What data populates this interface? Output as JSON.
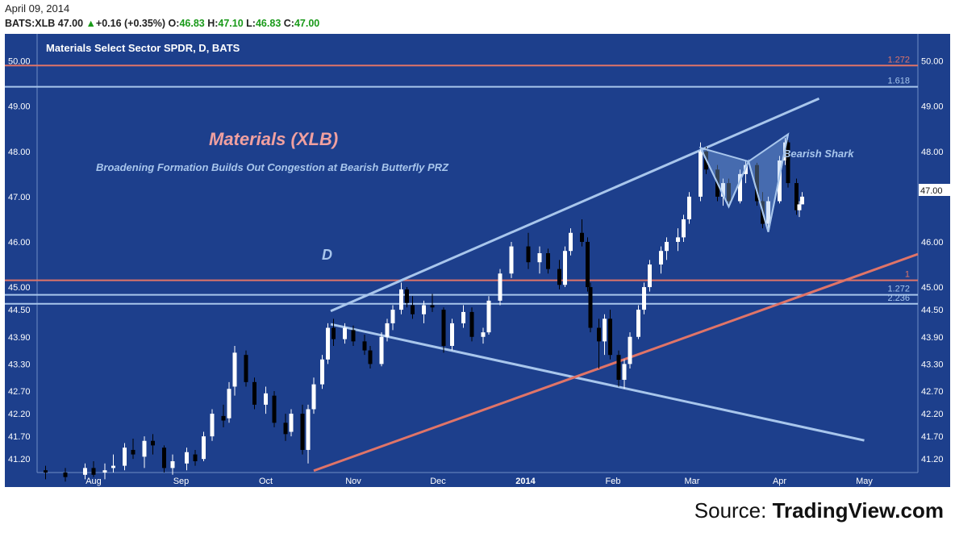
{
  "header": {
    "date": "April 09, 2014",
    "symbol": "BATS:XLB",
    "last": "47.00",
    "change": "+0.16 (+0.35%)",
    "o_label": "O:",
    "o_value": "46.83",
    "h_label": "H:",
    "h_value": "47.10",
    "l_label": "L:",
    "l_value": "46.83",
    "c_label": "C:",
    "c_value": "47.00"
  },
  "chart_title": "Materials Select Sector SPDR, D, BATS",
  "annotations": {
    "main_title": "Materials (XLB)",
    "subtitle": "Broadening Formation Builds Out Congestion at Bearish Butterfly PRZ",
    "d_label": "D",
    "shark_label": "Bearish Shark"
  },
  "source": {
    "prefix": "Source: ",
    "name": "TradingView.com"
  },
  "colors": {
    "background": "#1d3f8c",
    "up": "#ffffff",
    "down": "#000000",
    "blue_line": "#a8c6ec",
    "red_line": "#e07468",
    "title": "#f0a0a0"
  },
  "chart_data": {
    "type": "candlestick",
    "ylim": [
      40.9,
      50.6
    ],
    "y_ticks": [
      50.0,
      49.0,
      48.0,
      47.0,
      46.0,
      45.0,
      44.5,
      43.9,
      43.3,
      42.7,
      42.2,
      41.7,
      41.2
    ],
    "y_tick_labels": [
      "50.00",
      "49.00",
      "48.00",
      "47.00",
      "46.00",
      "45.00",
      "44.50",
      "43.90",
      "43.30",
      "42.70",
      "42.20",
      "41.70",
      "41.20"
    ],
    "last_price_label": "47.00",
    "x_labels": [
      "Aug",
      "Sep",
      "Oct",
      "Nov",
      "Dec",
      "2014",
      "Feb",
      "Mar",
      "Apr",
      "May"
    ],
    "x_label_dates": [
      "2013-08-01",
      "2013-09-01",
      "2013-10-01",
      "2013-11-01",
      "2013-12-01",
      "2014-01-01",
      "2014-02-01",
      "2014-03-01",
      "2014-04-01",
      "2014-05-01"
    ],
    "date_range": [
      "2013-07-12",
      "2014-05-20"
    ],
    "horizontal_levels": [
      {
        "value": 49.9,
        "label": "1.272",
        "color": "red"
      },
      {
        "value": 49.43,
        "label": "1.618",
        "color": "blue"
      },
      {
        "value": 45.15,
        "label": "1",
        "color": "red"
      },
      {
        "value": 44.83,
        "label": "1.272",
        "color": "blue"
      },
      {
        "value": 44.63,
        "label": "2.236",
        "color": "blue"
      }
    ],
    "trend_lines": [
      {
        "color": "blue",
        "from": [
          "2013-10-24",
          44.47
        ],
        "to": [
          "2014-04-15",
          49.17
        ]
      },
      {
        "color": "blue",
        "from": [
          "2013-10-24",
          44.18
        ],
        "to": [
          "2014-05-01",
          41.61
        ]
      },
      {
        "color": "red",
        "from": [
          "2013-10-18",
          40.94
        ],
        "to": [
          "2014-05-20",
          45.73
        ]
      }
    ],
    "shark_pattern": [
      {
        "date": "2014-03-04",
        "value": 48.08
      },
      {
        "date": "2014-03-14",
        "value": 46.78
      },
      {
        "date": "2014-03-21",
        "value": 47.78
      },
      {
        "date": "2014-03-28",
        "value": 46.22
      },
      {
        "date": "2014-04-04",
        "value": 48.38
      }
    ],
    "candles": [
      {
        "date": "2013-07-15",
        "o": 40.95,
        "h": 41.05,
        "l": 40.75,
        "c": 40.9
      },
      {
        "date": "2013-07-22",
        "o": 40.9,
        "h": 41.0,
        "l": 40.7,
        "c": 40.8
      },
      {
        "date": "2013-07-29",
        "o": 40.85,
        "h": 41.1,
        "l": 40.75,
        "c": 41.0
      },
      {
        "date": "2013-08-01",
        "o": 41.0,
        "h": 41.15,
        "l": 40.8,
        "c": 40.85
      },
      {
        "date": "2013-08-05",
        "o": 40.9,
        "h": 41.1,
        "l": 40.75,
        "c": 40.95
      },
      {
        "date": "2013-08-08",
        "o": 41.0,
        "h": 41.3,
        "l": 40.9,
        "c": 41.05
      },
      {
        "date": "2013-08-12",
        "o": 41.05,
        "h": 41.55,
        "l": 40.95,
        "c": 41.45
      },
      {
        "date": "2013-08-15",
        "o": 41.4,
        "h": 41.65,
        "l": 41.2,
        "c": 41.3
      },
      {
        "date": "2013-08-19",
        "o": 41.25,
        "h": 41.7,
        "l": 41.0,
        "c": 41.6
      },
      {
        "date": "2013-08-22",
        "o": 41.6,
        "h": 41.75,
        "l": 41.3,
        "c": 41.5
      },
      {
        "date": "2013-08-26",
        "o": 41.45,
        "h": 41.5,
        "l": 40.9,
        "c": 41.0
      },
      {
        "date": "2013-08-29",
        "o": 41.0,
        "h": 41.3,
        "l": 40.85,
        "c": 41.15
      },
      {
        "date": "2013-09-03",
        "o": 41.1,
        "h": 41.45,
        "l": 40.95,
        "c": 41.35
      },
      {
        "date": "2013-09-06",
        "o": 41.3,
        "h": 41.4,
        "l": 41.05,
        "c": 41.15
      },
      {
        "date": "2013-09-09",
        "o": 41.2,
        "h": 41.8,
        "l": 41.15,
        "c": 41.7
      },
      {
        "date": "2013-09-12",
        "o": 41.7,
        "h": 42.3,
        "l": 41.6,
        "c": 42.2
      },
      {
        "date": "2013-09-16",
        "o": 42.15,
        "h": 42.4,
        "l": 41.9,
        "c": 42.05
      },
      {
        "date": "2013-09-18",
        "o": 42.1,
        "h": 42.9,
        "l": 42.0,
        "c": 42.75
      },
      {
        "date": "2013-09-20",
        "o": 42.8,
        "h": 43.7,
        "l": 42.6,
        "c": 43.55
      },
      {
        "date": "2013-09-24",
        "o": 43.5,
        "h": 43.6,
        "l": 42.8,
        "c": 42.9
      },
      {
        "date": "2013-09-27",
        "o": 42.9,
        "h": 43.0,
        "l": 42.3,
        "c": 42.4
      },
      {
        "date": "2013-10-01",
        "o": 42.4,
        "h": 42.8,
        "l": 42.2,
        "c": 42.65
      },
      {
        "date": "2013-10-04",
        "o": 42.6,
        "h": 42.7,
        "l": 41.9,
        "c": 42.0
      },
      {
        "date": "2013-10-08",
        "o": 42.0,
        "h": 42.2,
        "l": 41.6,
        "c": 41.75
      },
      {
        "date": "2013-10-10",
        "o": 41.8,
        "h": 42.3,
        "l": 41.7,
        "c": 42.2
      },
      {
        "date": "2013-10-14",
        "o": 42.2,
        "h": 42.4,
        "l": 41.3,
        "c": 41.4
      },
      {
        "date": "2013-10-16",
        "o": 41.4,
        "h": 42.4,
        "l": 41.1,
        "c": 42.3
      },
      {
        "date": "2013-10-18",
        "o": 42.3,
        "h": 43.0,
        "l": 42.2,
        "c": 42.85
      },
      {
        "date": "2013-10-21",
        "o": 42.85,
        "h": 43.5,
        "l": 42.75,
        "c": 43.4
      },
      {
        "date": "2013-10-23",
        "o": 43.4,
        "h": 44.2,
        "l": 43.3,
        "c": 44.1
      },
      {
        "date": "2013-10-25",
        "o": 44.1,
        "h": 44.3,
        "l": 43.7,
        "c": 43.85
      },
      {
        "date": "2013-10-29",
        "o": 43.85,
        "h": 44.2,
        "l": 43.75,
        "c": 44.1
      },
      {
        "date": "2013-11-01",
        "o": 44.05,
        "h": 44.15,
        "l": 43.7,
        "c": 43.8
      },
      {
        "date": "2013-11-05",
        "o": 43.8,
        "h": 43.95,
        "l": 43.5,
        "c": 43.6
      },
      {
        "date": "2013-11-07",
        "o": 43.6,
        "h": 43.7,
        "l": 43.2,
        "c": 43.3
      },
      {
        "date": "2013-11-11",
        "o": 43.3,
        "h": 44.0,
        "l": 43.25,
        "c": 43.9
      },
      {
        "date": "2013-11-13",
        "o": 43.9,
        "h": 44.3,
        "l": 43.8,
        "c": 44.2
      },
      {
        "date": "2013-11-15",
        "o": 44.2,
        "h": 44.6,
        "l": 44.05,
        "c": 44.5
      },
      {
        "date": "2013-11-18",
        "o": 44.5,
        "h": 45.1,
        "l": 44.4,
        "c": 44.95
      },
      {
        "date": "2013-11-20",
        "o": 44.95,
        "h": 45.0,
        "l": 44.55,
        "c": 44.65
      },
      {
        "date": "2013-11-22",
        "o": 44.6,
        "h": 44.8,
        "l": 44.3,
        "c": 44.4
      },
      {
        "date": "2013-11-26",
        "o": 44.4,
        "h": 44.7,
        "l": 44.2,
        "c": 44.6
      },
      {
        "date": "2013-11-29",
        "o": 44.6,
        "h": 44.85,
        "l": 44.45,
        "c": 44.55
      },
      {
        "date": "2013-12-03",
        "o": 44.5,
        "h": 44.55,
        "l": 43.55,
        "c": 43.7
      },
      {
        "date": "2013-12-06",
        "o": 43.7,
        "h": 44.3,
        "l": 43.6,
        "c": 44.2
      },
      {
        "date": "2013-12-10",
        "o": 44.2,
        "h": 44.6,
        "l": 44.1,
        "c": 44.45
      },
      {
        "date": "2013-12-13",
        "o": 44.45,
        "h": 44.55,
        "l": 43.8,
        "c": 43.9
      },
      {
        "date": "2013-12-17",
        "o": 43.9,
        "h": 44.1,
        "l": 43.75,
        "c": 44.0
      },
      {
        "date": "2013-12-19",
        "o": 44.0,
        "h": 44.8,
        "l": 43.95,
        "c": 44.7
      },
      {
        "date": "2013-12-23",
        "o": 44.7,
        "h": 45.4,
        "l": 44.6,
        "c": 45.3
      },
      {
        "date": "2013-12-27",
        "o": 45.3,
        "h": 46.0,
        "l": 45.2,
        "c": 45.9
      },
      {
        "date": "2014-01-02",
        "o": 45.9,
        "h": 46.2,
        "l": 45.4,
        "c": 45.55
      },
      {
        "date": "2014-01-06",
        "o": 45.55,
        "h": 45.9,
        "l": 45.3,
        "c": 45.75
      },
      {
        "date": "2014-01-09",
        "o": 45.75,
        "h": 45.85,
        "l": 45.3,
        "c": 45.4
      },
      {
        "date": "2014-01-13",
        "o": 45.4,
        "h": 45.6,
        "l": 44.95,
        "c": 45.05
      },
      {
        "date": "2014-01-15",
        "o": 45.05,
        "h": 45.9,
        "l": 45.0,
        "c": 45.8
      },
      {
        "date": "2014-01-17",
        "o": 45.8,
        "h": 46.3,
        "l": 45.7,
        "c": 46.2
      },
      {
        "date": "2014-01-21",
        "o": 46.2,
        "h": 46.5,
        "l": 45.9,
        "c": 46.0
      },
      {
        "date": "2014-01-23",
        "o": 46.0,
        "h": 46.1,
        "l": 44.9,
        "c": 45.0
      },
      {
        "date": "2014-01-24",
        "o": 45.0,
        "h": 45.1,
        "l": 44.0,
        "c": 44.1
      },
      {
        "date": "2014-01-27",
        "o": 44.1,
        "h": 44.3,
        "l": 43.2,
        "c": 43.8
      },
      {
        "date": "2014-01-29",
        "o": 43.8,
        "h": 44.4,
        "l": 43.5,
        "c": 44.3
      },
      {
        "date": "2014-01-31",
        "o": 44.3,
        "h": 44.5,
        "l": 43.4,
        "c": 43.5
      },
      {
        "date": "2014-02-03",
        "o": 43.5,
        "h": 43.6,
        "l": 42.8,
        "c": 42.95
      },
      {
        "date": "2014-02-05",
        "o": 42.95,
        "h": 43.4,
        "l": 42.75,
        "c": 43.3
      },
      {
        "date": "2014-02-07",
        "o": 43.3,
        "h": 44.0,
        "l": 43.2,
        "c": 43.9
      },
      {
        "date": "2014-02-10",
        "o": 43.9,
        "h": 44.6,
        "l": 43.85,
        "c": 44.5
      },
      {
        "date": "2014-02-12",
        "o": 44.5,
        "h": 45.1,
        "l": 44.4,
        "c": 45.0
      },
      {
        "date": "2014-02-14",
        "o": 45.0,
        "h": 45.6,
        "l": 44.9,
        "c": 45.5
      },
      {
        "date": "2014-02-18",
        "o": 45.5,
        "h": 45.9,
        "l": 45.3,
        "c": 45.8
      },
      {
        "date": "2014-02-20",
        "o": 45.8,
        "h": 46.1,
        "l": 45.6,
        "c": 46.0
      },
      {
        "date": "2014-02-24",
        "o": 46.0,
        "h": 46.3,
        "l": 45.8,
        "c": 46.1
      },
      {
        "date": "2014-02-26",
        "o": 46.1,
        "h": 46.6,
        "l": 46.0,
        "c": 46.5
      },
      {
        "date": "2014-02-28",
        "o": 46.5,
        "h": 47.1,
        "l": 46.4,
        "c": 47.0
      },
      {
        "date": "2014-03-04",
        "o": 47.0,
        "h": 48.2,
        "l": 46.9,
        "c": 48.0
      },
      {
        "date": "2014-03-06",
        "o": 48.0,
        "h": 48.1,
        "l": 47.5,
        "c": 47.6
      },
      {
        "date": "2014-03-10",
        "o": 47.6,
        "h": 47.7,
        "l": 46.9,
        "c": 47.0
      },
      {
        "date": "2014-03-12",
        "o": 47.0,
        "h": 47.4,
        "l": 46.8,
        "c": 47.3
      },
      {
        "date": "2014-03-14",
        "o": 47.3,
        "h": 47.4,
        "l": 46.8,
        "c": 46.9
      },
      {
        "date": "2014-03-18",
        "o": 46.9,
        "h": 47.6,
        "l": 46.85,
        "c": 47.5
      },
      {
        "date": "2014-03-20",
        "o": 47.5,
        "h": 47.8,
        "l": 47.3,
        "c": 47.7
      },
      {
        "date": "2014-03-24",
        "o": 47.7,
        "h": 47.75,
        "l": 46.8,
        "c": 46.9
      },
      {
        "date": "2014-03-26",
        "o": 46.9,
        "h": 47.1,
        "l": 46.3,
        "c": 46.4
      },
      {
        "date": "2014-03-28",
        "o": 46.4,
        "h": 47.0,
        "l": 46.3,
        "c": 46.9
      },
      {
        "date": "2014-04-01",
        "o": 46.9,
        "h": 47.9,
        "l": 46.85,
        "c": 47.8
      },
      {
        "date": "2014-04-03",
        "o": 47.8,
        "h": 48.3,
        "l": 47.7,
        "c": 48.2
      },
      {
        "date": "2014-04-04",
        "o": 48.2,
        "h": 48.25,
        "l": 47.2,
        "c": 47.3
      },
      {
        "date": "2014-04-07",
        "o": 47.3,
        "h": 47.4,
        "l": 46.6,
        "c": 46.7
      },
      {
        "date": "2014-04-08",
        "o": 46.7,
        "h": 46.9,
        "l": 46.55,
        "c": 46.83
      },
      {
        "date": "2014-04-09",
        "o": 46.83,
        "h": 47.1,
        "l": 46.83,
        "c": 47.0
      }
    ]
  }
}
